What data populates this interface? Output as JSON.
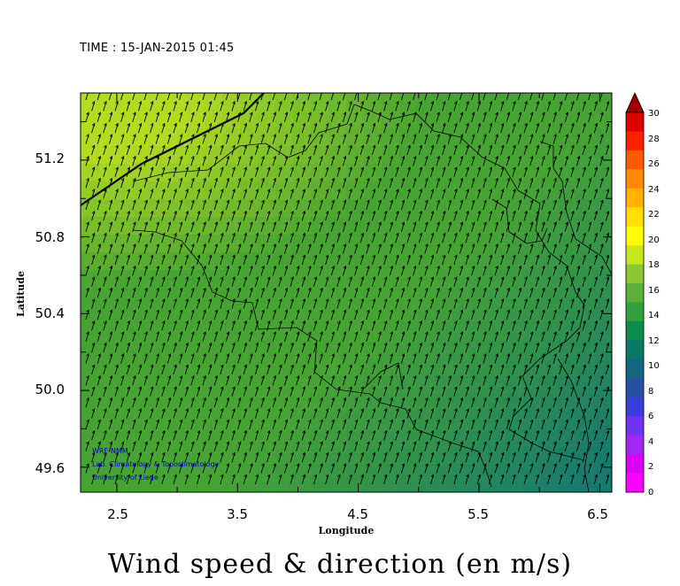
{
  "header": {
    "time_label": "TIME : 15-JAN-2015 01:45"
  },
  "caption": "Wind speed & direction (en m/s)",
  "map": {
    "projection": "lat-lon",
    "xlabel": "Longitude",
    "ylabel": "Latitude",
    "x_ticks": [
      "2.5",
      "3.5",
      "4.5",
      "5.5",
      "6.5"
    ],
    "y_ticks": [
      "51.2",
      "50.8",
      "50.4",
      "50.0",
      "49.6"
    ],
    "x_range": [
      2.2,
      6.6
    ],
    "y_range": [
      49.47,
      51.55
    ]
  },
  "credits": [
    "WRF-NMM",
    "Lab. Climatology & Topoclimatology",
    "University of Liege"
  ],
  "colorbar": {
    "labels": [
      "30",
      "28",
      "26",
      "24",
      "22",
      "20",
      "18",
      "16",
      "14",
      "12",
      "10",
      "8",
      "6",
      "4",
      "2",
      "0"
    ],
    "colors": [
      "#a00000",
      "#e00000",
      "#ff2000",
      "#ff5a00",
      "#ff8c00",
      "#ffb300",
      "#ffe000",
      "#ffff00",
      "#c8e61e",
      "#8cc832",
      "#5aaf3c",
      "#32a03c",
      "#0a8c4b",
      "#0a7864",
      "#146482",
      "#2850a0",
      "#3c3cdc",
      "#6e32f0",
      "#a028f5",
      "#dc00f5",
      "#ff00ff"
    ]
  },
  "style": {
    "field_high": "#b4dc1e",
    "field_mid": "#46a532",
    "field_low": "#167a6e",
    "arrow_color": "#000000",
    "border_color": "#000000",
    "credit_color": "#0000cc"
  }
}
